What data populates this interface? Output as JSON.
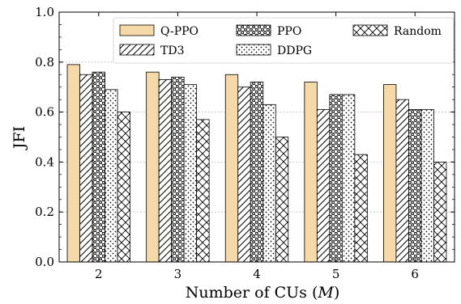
{
  "chart_data": {
    "type": "bar",
    "title": "",
    "xlabel": "Number of CUs",
    "xlabel_var": "M",
    "ylabel": "JFI",
    "ylim": [
      0.0,
      1.0
    ],
    "yticks": [
      "0.0",
      "0.2",
      "0.4",
      "0.6",
      "0.8",
      "1.0"
    ],
    "grid": "y dotted",
    "legend_placement": "top",
    "categories": [
      "2",
      "3",
      "4",
      "5",
      "6"
    ],
    "series": [
      {
        "name": "Q-PPO",
        "values": [
          0.79,
          0.76,
          0.75,
          0.72,
          0.71
        ],
        "fill": "#f5d9a8",
        "pattern": "solid"
      },
      {
        "name": "TD3",
        "values": [
          0.75,
          0.73,
          0.7,
          0.61,
          0.65
        ],
        "fill": "#ffffff",
        "pattern": "diagonal-hatch"
      },
      {
        "name": "PPO",
        "values": [
          0.76,
          0.74,
          0.72,
          0.67,
          0.61
        ],
        "fill": "#ffffff",
        "pattern": "large-dots"
      },
      {
        "name": "DDPG",
        "values": [
          0.69,
          0.71,
          0.63,
          0.67,
          0.61
        ],
        "fill": "#ffffff",
        "pattern": "small-dots"
      },
      {
        "name": "Random",
        "values": [
          0.6,
          0.57,
          0.5,
          0.43,
          0.4
        ],
        "fill": "#ffffff",
        "pattern": "cross-hatch"
      }
    ]
  }
}
